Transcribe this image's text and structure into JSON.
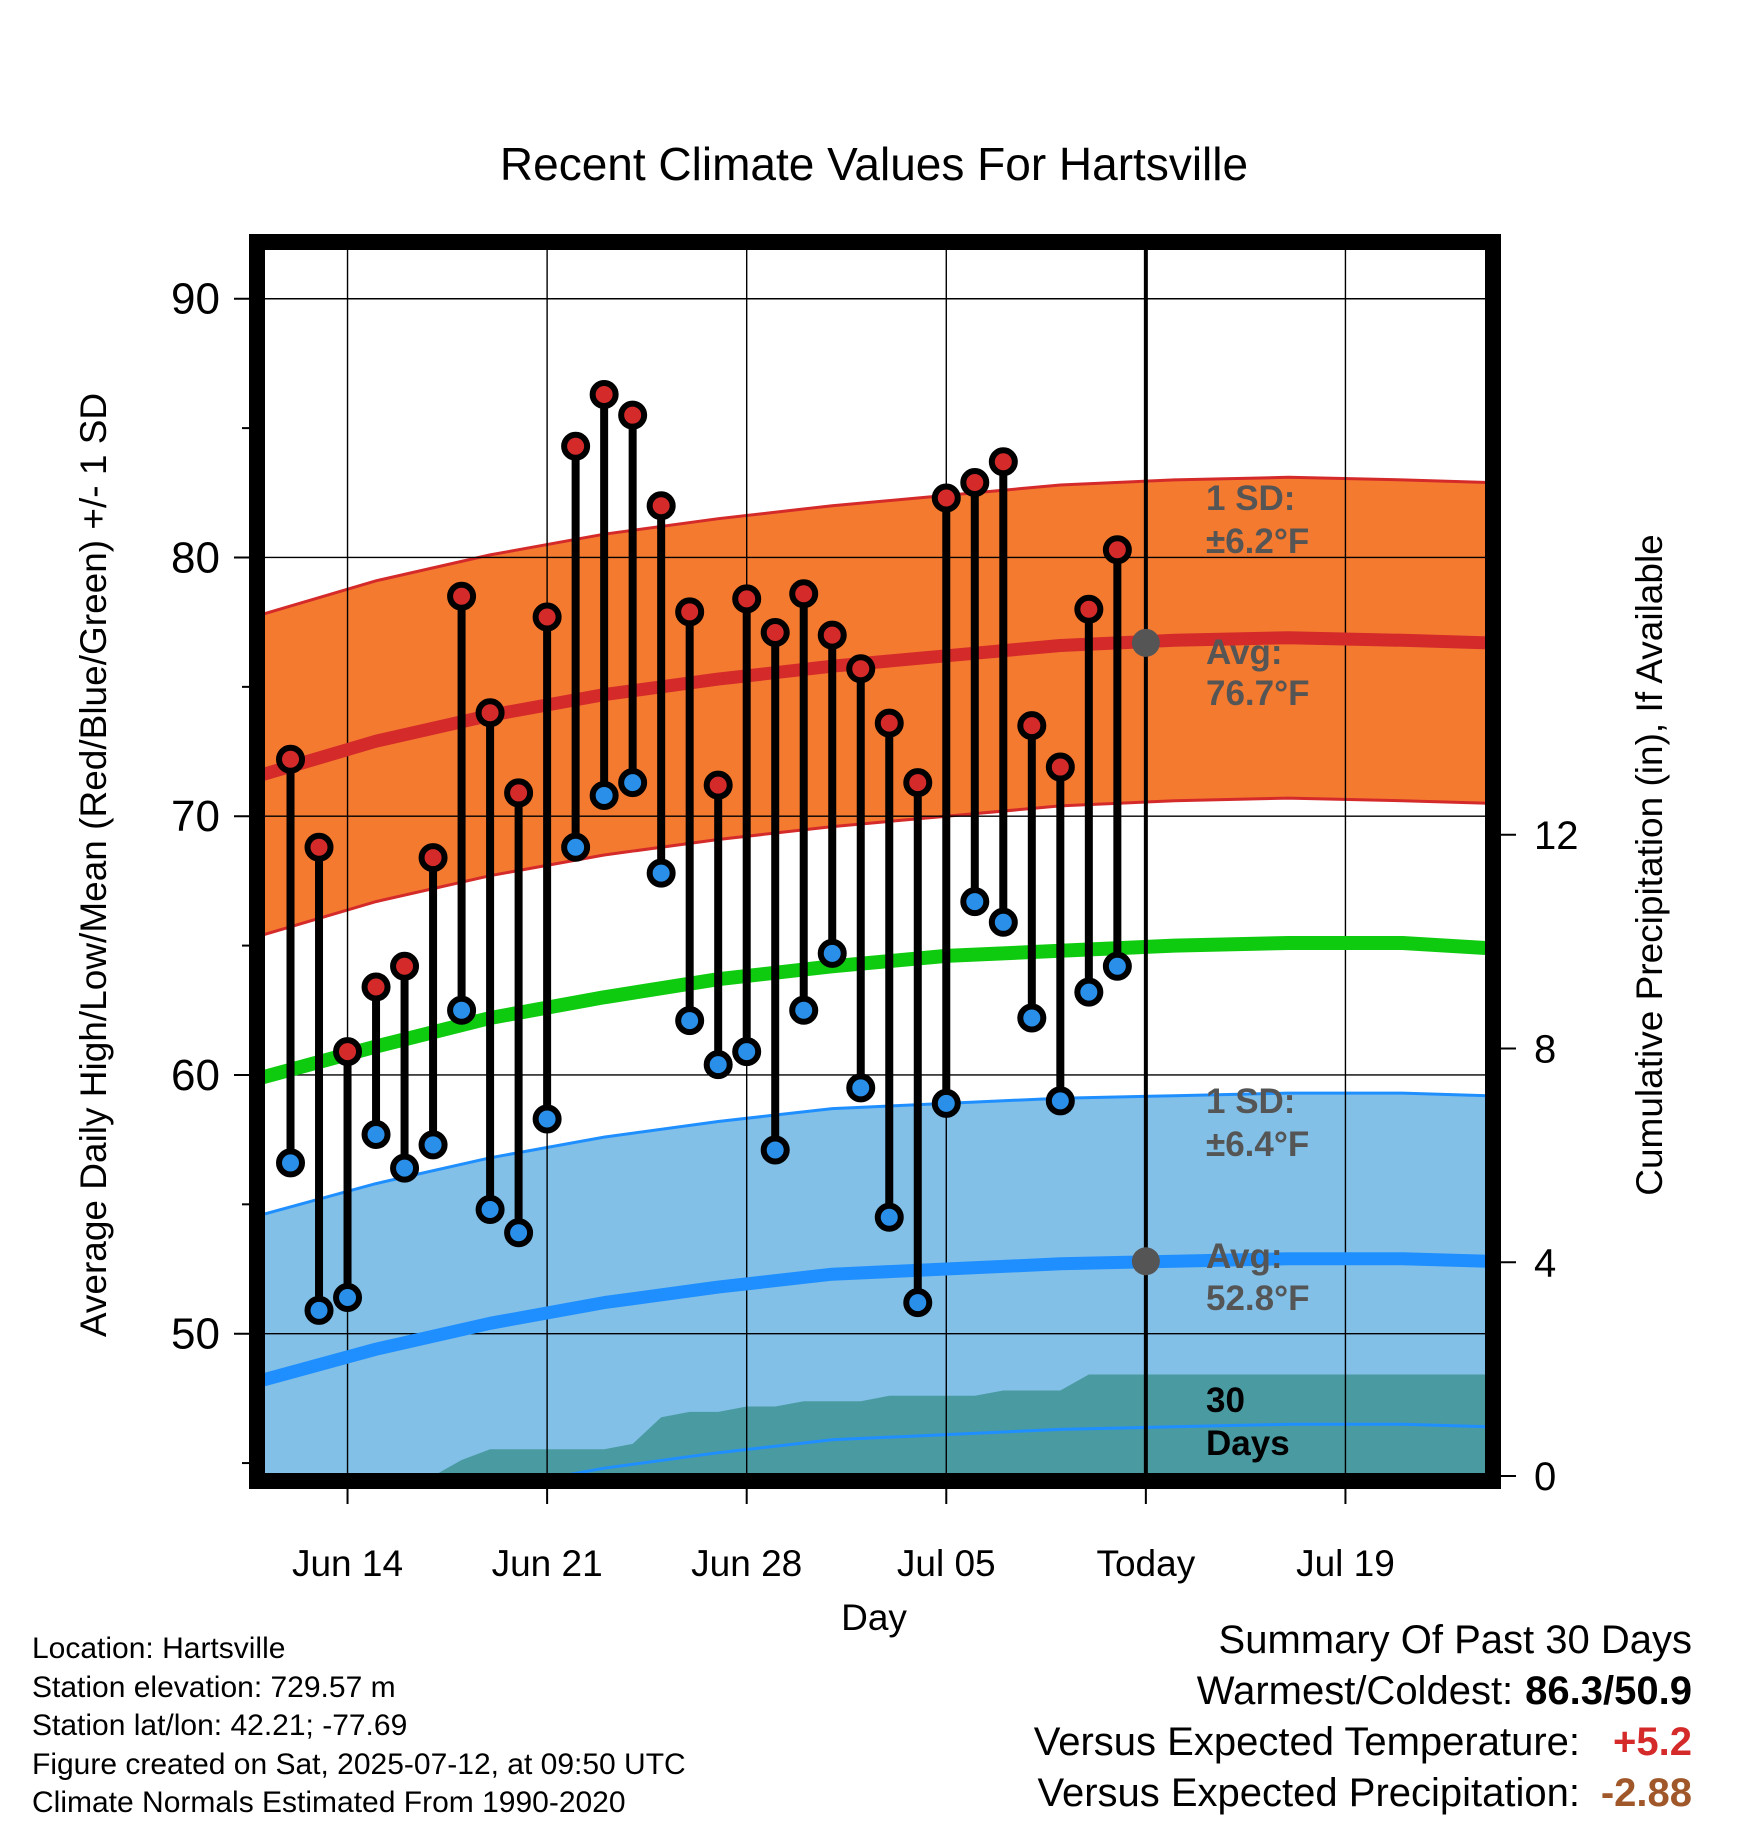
{
  "chart_data": {
    "type": "line",
    "title": "Recent Climate Values For Hartsville",
    "xlabel": "Day",
    "ylabel": "Average Daily High/Low/Mean (Red/Blue/Green) +/- 1 SD",
    "y2label": "Cumulative Precipitation (in), If Available",
    "ylim": [
      44.5,
      92
    ],
    "y2lim": [
      0,
      23
    ],
    "xlim": [
      "2025-06-11",
      "2025-07-24"
    ],
    "y_ticks": [
      50,
      60,
      70,
      80,
      90
    ],
    "y2_ticks": [
      0,
      4,
      8,
      12
    ],
    "x_ticks": [
      {
        "date": "2025-06-14",
        "label": "Jun 14"
      },
      {
        "date": "2025-06-21",
        "label": "Jun 21"
      },
      {
        "date": "2025-06-28",
        "label": "Jun 28"
      },
      {
        "date": "2025-07-05",
        "label": "Jul 05"
      },
      {
        "date": "2025-07-12",
        "label": "Today"
      },
      {
        "date": "2025-07-19",
        "label": "Jul 19"
      }
    ],
    "grid": true,
    "today": "2025-07-12",
    "dates": [
      "2025-06-12",
      "2025-06-13",
      "2025-06-14",
      "2025-06-15",
      "2025-06-16",
      "2025-06-17",
      "2025-06-18",
      "2025-06-19",
      "2025-06-20",
      "2025-06-21",
      "2025-06-22",
      "2025-06-23",
      "2025-06-24",
      "2025-06-25",
      "2025-06-26",
      "2025-06-27",
      "2025-06-28",
      "2025-06-29",
      "2025-06-30",
      "2025-07-01",
      "2025-07-02",
      "2025-07-03",
      "2025-07-04",
      "2025-07-05",
      "2025-07-06",
      "2025-07-07",
      "2025-07-08",
      "2025-07-09",
      "2025-07-10",
      "2025-07-11"
    ],
    "series": [
      {
        "values": [
          72.2,
          68.8,
          60.9,
          63.4,
          64.2,
          68.4,
          78.5,
          74.0,
          70.9,
          77.7,
          84.3,
          86.3,
          85.5,
          82.0,
          77.9,
          71.2,
          78.4,
          77.1,
          78.6,
          77.0,
          75.7,
          73.6,
          71.3,
          82.3,
          82.9,
          83.7,
          73.5,
          71.9,
          78.0,
          80.3
        ],
        "color": "#d42a2a"
      },
      {
        "values": [
          56.6,
          50.9,
          51.4,
          57.7,
          56.4,
          57.3,
          62.5,
          54.8,
          53.9,
          58.3,
          68.8,
          70.8,
          71.3,
          67.8,
          62.1,
          60.4,
          60.9,
          57.1,
          62.5,
          64.7,
          59.5,
          54.5,
          51.2,
          58.9,
          66.7,
          65.9,
          62.2,
          59.0,
          63.2,
          64.2
        ],
        "color": "#2a8fe8"
      }
    ],
    "normals": {
      "dates": [
        "2025-06-11",
        "2025-06-15",
        "2025-06-19",
        "2025-06-23",
        "2025-06-27",
        "2025-07-01",
        "2025-07-05",
        "2025-07-09",
        "2025-07-13",
        "2025-07-17",
        "2025-07-21",
        "2025-07-24"
      ],
      "high_avg": [
        71.6,
        72.9,
        73.9,
        74.7,
        75.3,
        75.8,
        76.2,
        76.6,
        76.8,
        76.9,
        76.8,
        76.7
      ],
      "high_sd": 6.2,
      "low_avg": [
        48.2,
        49.4,
        50.4,
        51.2,
        51.8,
        52.3,
        52.5,
        52.7,
        52.8,
        52.9,
        52.9,
        52.8
      ],
      "low_sd": 6.4,
      "mean_avg": [
        59.9,
        61.1,
        62.2,
        63.0,
        63.7,
        64.2,
        64.6,
        64.8,
        65.0,
        65.1,
        65.1,
        64.9
      ],
      "high_color": "#d42a2a",
      "high_band_color": "#f47a30",
      "low_color": "#1f8fff",
      "low_band_color": "#82c0e8",
      "mean_color": "#0fcb0f"
    },
    "precipitation": {
      "dates": [
        "2025-06-11",
        "2025-06-14",
        "2025-06-15",
        "2025-06-16",
        "2025-06-17",
        "2025-06-18",
        "2025-06-19",
        "2025-06-20",
        "2025-06-21",
        "2025-06-22",
        "2025-06-23",
        "2025-06-24",
        "2025-06-25",
        "2025-06-26",
        "2025-06-27",
        "2025-06-28",
        "2025-06-29",
        "2025-06-30",
        "2025-07-01",
        "2025-07-02",
        "2025-07-03",
        "2025-07-04",
        "2025-07-05",
        "2025-07-06",
        "2025-07-07",
        "2025-07-08",
        "2025-07-09",
        "2025-07-10",
        "2025-07-11",
        "2025-07-12",
        "2025-07-24"
      ],
      "cumulative": [
        0,
        0,
        0,
        0,
        0,
        0.3,
        0.5,
        0.5,
        0.5,
        0.5,
        0.5,
        0.6,
        1.1,
        1.2,
        1.2,
        1.3,
        1.3,
        1.4,
        1.4,
        1.4,
        1.5,
        1.5,
        1.5,
        1.5,
        1.6,
        1.6,
        1.6,
        1.9,
        1.9,
        1.9,
        1.9
      ],
      "color": "#4a9aa1"
    },
    "annotations": {
      "high_sd_label_1": "1 SD:",
      "high_sd_label_2": "±6.2°F",
      "high_avg_label_1": "Avg:",
      "high_avg_label_2": "76.7°F",
      "low_sd_label_1": "1 SD:",
      "low_sd_label_2": "±6.4°F",
      "low_avg_label_1": "Avg:",
      "low_avg_label_2": "52.8°F",
      "days_label_1": "30",
      "days_label_2": "Days"
    }
  },
  "footer_left": {
    "location": "Location: Hartsville",
    "elevation": "Station elevation: 729.57 m",
    "latlon": "Station lat/lon: 42.21; -77.69",
    "created": "Figure created on Sat, 2025-07-12, at 09:50 UTC",
    "normals": "Climate Normals Estimated From 1990-2020"
  },
  "summary": {
    "heading": "Summary Of Past 30 Days",
    "warm_cold_label": "Warmest/Coldest:",
    "warm_cold_value": "86.3/50.9",
    "temp_label": "Versus Expected Temperature:",
    "temp_value": "+5.2",
    "temp_color": "#d42a2a",
    "precip_label": "Versus Expected Precipitation:",
    "precip_value": "-2.88",
    "precip_color": "#a0582a"
  }
}
